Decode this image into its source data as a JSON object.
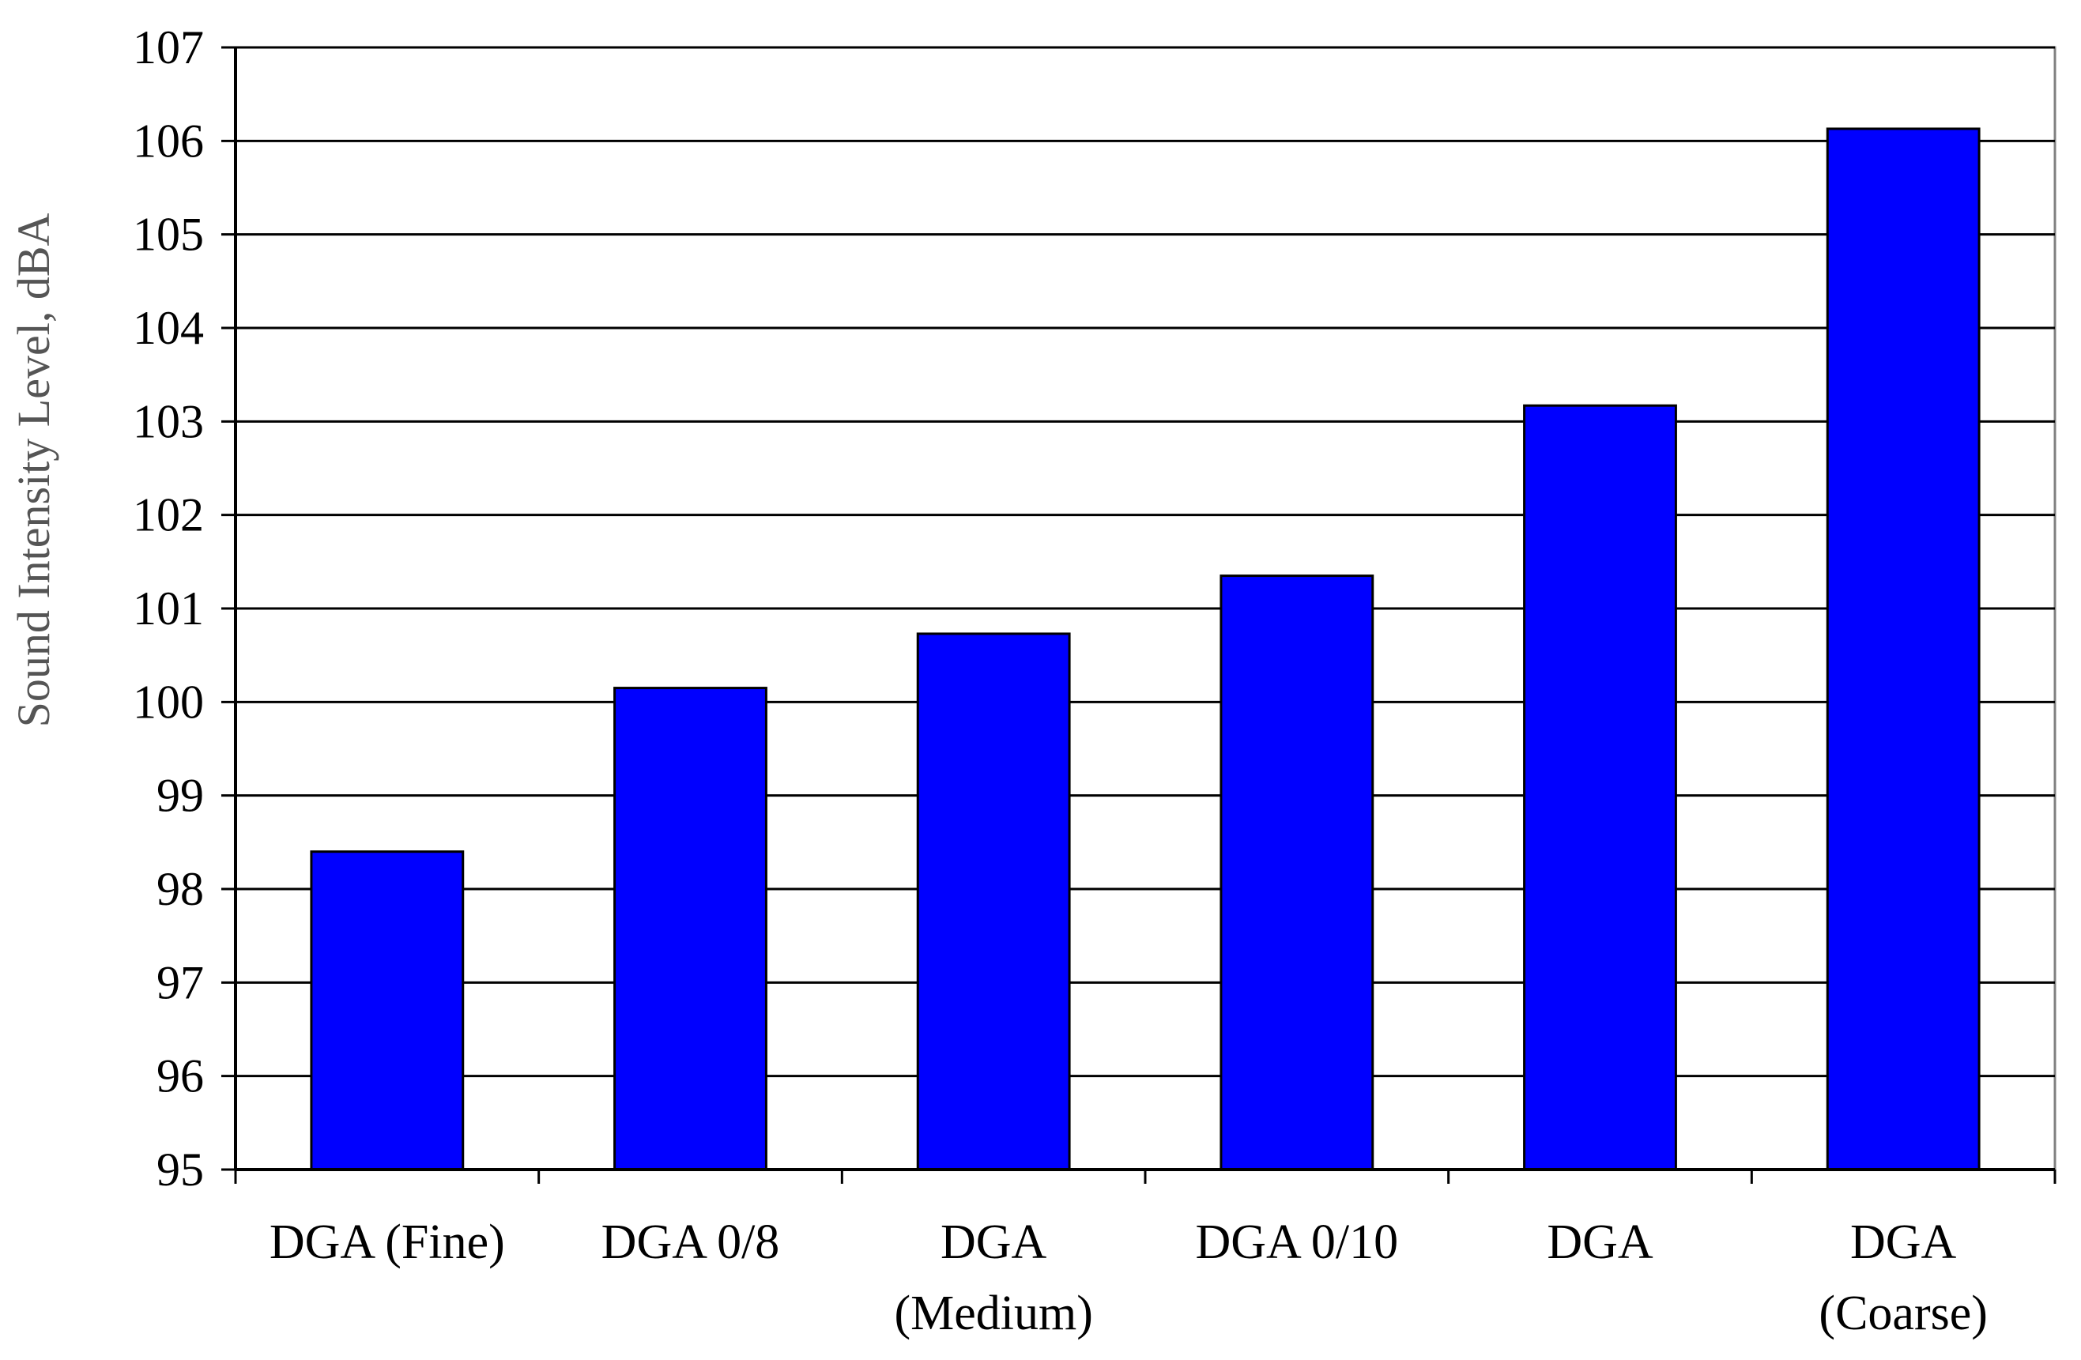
{
  "chart_data": {
    "type": "bar",
    "title": "",
    "xlabel": "",
    "ylabel": "Sound Intensity Level, dBA",
    "ylim": [
      95,
      107
    ],
    "yticks": [
      "95",
      "96",
      "97",
      "98",
      "99",
      "100",
      "101",
      "102",
      "103",
      "104",
      "105",
      "106",
      "107"
    ],
    "grid": true,
    "legend": "none",
    "categories": [
      [
        "DGA (Fine)"
      ],
      [
        "DGA 0/8"
      ],
      [
        "DGA",
        "(Medium)"
      ],
      [
        "DGA 0/10"
      ],
      [
        "DGA"
      ],
      [
        "DGA",
        "(Coarse)"
      ]
    ],
    "values": [
      98.4,
      100.15,
      100.73,
      101.35,
      103.17,
      106.13
    ],
    "colors": {
      "bar": "#0000ff",
      "bar_edge": "#000000",
      "grid": "#000000",
      "axis": "#000000"
    }
  }
}
